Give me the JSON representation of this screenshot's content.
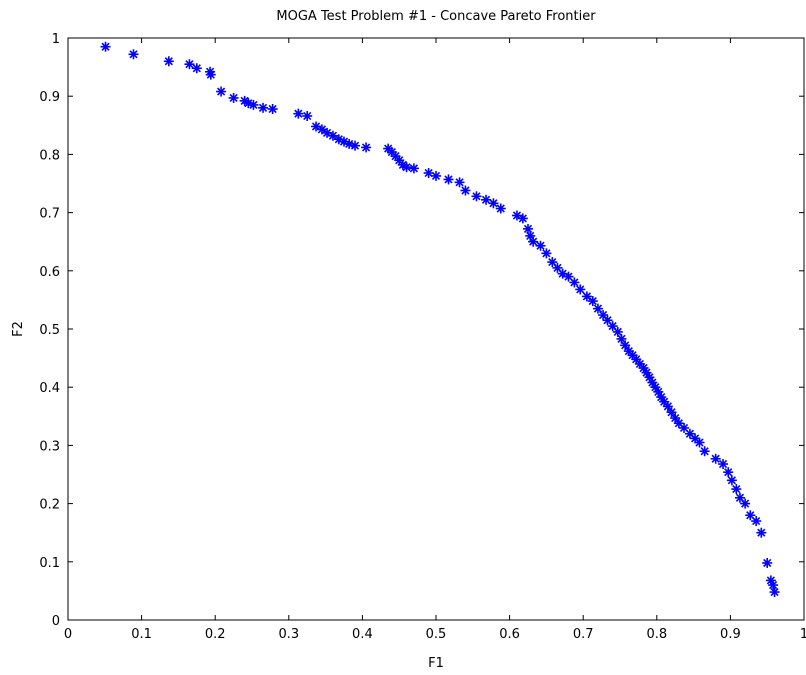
{
  "chart_data": {
    "type": "scatter",
    "title": "MOGA Test Problem #1 - Concave Pareto Frontier",
    "xlabel": "F1",
    "ylabel": "F2",
    "xlim": [
      0,
      1
    ],
    "ylim": [
      0,
      1
    ],
    "xticks": [
      "0",
      "0.1",
      "0.2",
      "0.3",
      "0.4",
      "0.5",
      "0.6",
      "0.7",
      "0.8",
      "0.9",
      "1"
    ],
    "yticks": [
      "0",
      "0.1",
      "0.2",
      "0.3",
      "0.4",
      "0.5",
      "0.6",
      "0.7",
      "0.8",
      "0.9",
      "1"
    ],
    "grid": false,
    "marker": "*",
    "marker_color": "#0000ff",
    "series": [
      {
        "x": [
          0.051,
          0.089,
          0.137,
          0.165,
          0.175,
          0.193,
          0.194,
          0.208,
          0.225,
          0.24,
          0.245,
          0.252,
          0.265,
          0.278,
          0.313,
          0.325,
          0.337,
          0.345,
          0.352,
          0.36,
          0.368,
          0.375,
          0.382,
          0.39,
          0.405,
          0.435,
          0.44,
          0.445,
          0.45,
          0.455,
          0.46,
          0.47,
          0.49,
          0.5,
          0.517,
          0.532,
          0.54,
          0.555,
          0.568,
          0.578,
          0.588,
          0.61,
          0.618,
          0.625,
          0.628,
          0.632,
          0.642,
          0.65,
          0.658,
          0.665,
          0.672,
          0.68,
          0.688,
          0.696,
          0.705,
          0.713,
          0.72,
          0.727,
          0.733,
          0.74,
          0.747,
          0.752,
          0.757,
          0.762,
          0.767,
          0.772,
          0.777,
          0.782,
          0.786,
          0.79,
          0.794,
          0.798,
          0.802,
          0.806,
          0.81,
          0.815,
          0.82,
          0.825,
          0.83,
          0.837,
          0.845,
          0.852,
          0.858,
          0.865,
          0.88,
          0.89,
          0.897,
          0.902,
          0.908,
          0.913,
          0.92,
          0.927,
          0.935,
          0.942,
          0.95,
          0.955,
          0.958,
          0.96
        ],
        "y": [
          0.985,
          0.972,
          0.96,
          0.955,
          0.948,
          0.942,
          0.937,
          0.908,
          0.897,
          0.892,
          0.888,
          0.885,
          0.88,
          0.878,
          0.87,
          0.866,
          0.848,
          0.843,
          0.837,
          0.832,
          0.826,
          0.822,
          0.818,
          0.815,
          0.812,
          0.81,
          0.804,
          0.797,
          0.79,
          0.782,
          0.778,
          0.776,
          0.768,
          0.763,
          0.757,
          0.752,
          0.738,
          0.728,
          0.722,
          0.716,
          0.707,
          0.695,
          0.69,
          0.672,
          0.66,
          0.65,
          0.643,
          0.63,
          0.615,
          0.605,
          0.595,
          0.59,
          0.58,
          0.568,
          0.556,
          0.548,
          0.535,
          0.524,
          0.515,
          0.505,
          0.495,
          0.483,
          0.472,
          0.462,
          0.455,
          0.448,
          0.44,
          0.433,
          0.425,
          0.417,
          0.408,
          0.4,
          0.392,
          0.383,
          0.375,
          0.367,
          0.357,
          0.347,
          0.338,
          0.33,
          0.32,
          0.312,
          0.305,
          0.29,
          0.277,
          0.268,
          0.254,
          0.24,
          0.225,
          0.21,
          0.2,
          0.18,
          0.17,
          0.15,
          0.098,
          0.068,
          0.06,
          0.048
        ]
      }
    ]
  }
}
